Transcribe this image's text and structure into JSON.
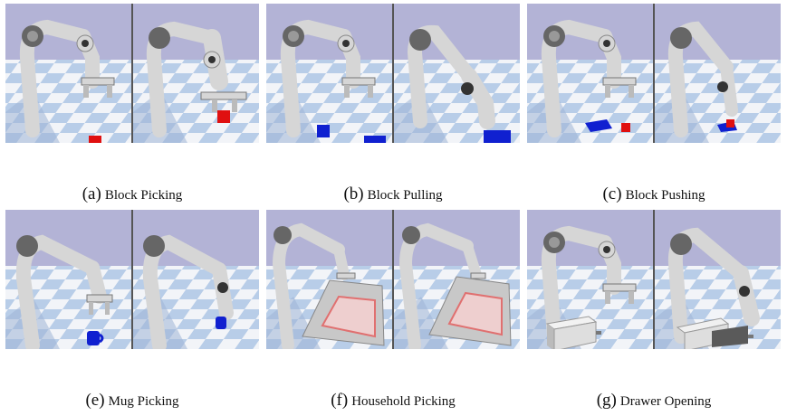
{
  "figure": {
    "panels": [
      {
        "letter": "(a)",
        "name": "Block Picking"
      },
      {
        "letter": "(b)",
        "name": "Block Pulling"
      },
      {
        "letter": "(c)",
        "name": "Block Pushing"
      },
      {
        "letter": "(e)",
        "name": "Mug Picking"
      },
      {
        "letter": "(f)",
        "name": "Household Picking"
      },
      {
        "letter": "(g)",
        "name": "Drawer Opening"
      }
    ]
  },
  "colors": {
    "sky": "#b3b3d6",
    "floor_light": "#f2f4f8",
    "floor_blue": "#b8cde8",
    "robot": "#d8d8d8",
    "robot_dark": "#555555",
    "block_red": "#e01010",
    "block_blue": "#1020d0"
  }
}
